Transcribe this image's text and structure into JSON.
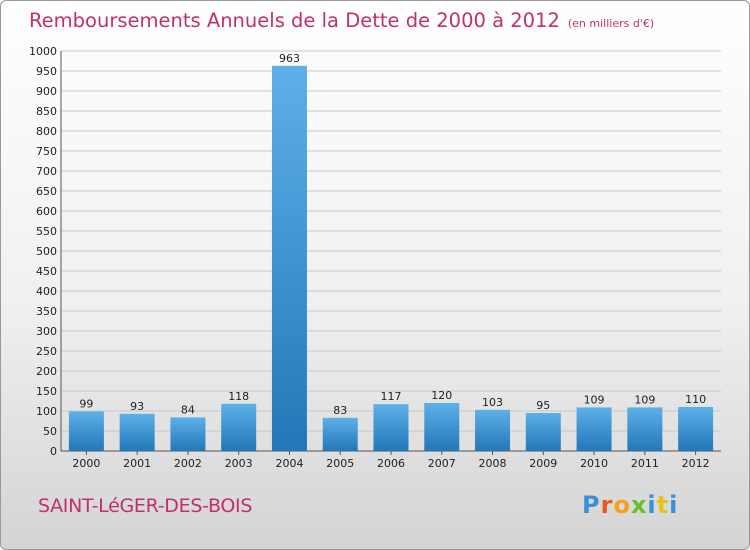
{
  "title": "Remboursements Annuels de la Dette de 2000 à 2012",
  "subtitle": "(en milliers d'€)",
  "commune": "SAINT-LéGER-DES-BOIS",
  "logo_text": "Proxiti",
  "colors": {
    "title": "#c0306c",
    "bar_light": "#5eb0e8",
    "bar_dark": "#2277b8",
    "grid": "#c8c8c8",
    "logo": [
      "#3a8fd8",
      "#e85a1a",
      "#f2a31a",
      "#6bbf2a",
      "#3a8fd8",
      "#e8c21a",
      "#3a8fd8"
    ]
  },
  "chart_data": {
    "type": "bar",
    "categories": [
      "2000",
      "2001",
      "2002",
      "2003",
      "2004",
      "2005",
      "2006",
      "2007",
      "2008",
      "2009",
      "2010",
      "2011",
      "2012"
    ],
    "values": [
      99,
      93,
      84,
      118,
      963,
      83,
      117,
      120,
      103,
      95,
      109,
      109,
      110
    ],
    "data_labels": [
      "99",
      "93",
      "84",
      "118",
      "963",
      "83",
      "117",
      "120",
      "103",
      "95",
      "109",
      "109",
      "110"
    ],
    "title": "Remboursements Annuels de la Dette de 2000 à 2012",
    "ylim": [
      0,
      1000
    ],
    "yticks": [
      "0",
      "50",
      "100",
      "150",
      "200",
      "250",
      "300",
      "350",
      "400",
      "450",
      "500",
      "550",
      "600",
      "650",
      "700",
      "750",
      "800",
      "850",
      "900",
      "950",
      "1000"
    ],
    "grid": true,
    "legend": "none"
  }
}
